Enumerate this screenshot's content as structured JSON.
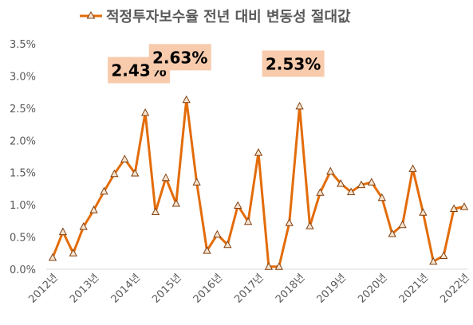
{
  "chart_data": {
    "type": "line",
    "title": "",
    "xlabel": "",
    "ylabel": "",
    "ylim": [
      0,
      0.035
    ],
    "y_ticks": [
      "0.0%",
      "0.5%",
      "1.0%",
      "1.5%",
      "2.0%",
      "2.5%",
      "3.0%",
      "3.5%"
    ],
    "x_tick_labels": [
      "2012년",
      "2013년",
      "2014년",
      "2015년",
      "2016년",
      "2017년",
      "2018년",
      "2019년",
      "2020년",
      "2021년",
      "2022년"
    ],
    "grid": false,
    "legend_position": "top",
    "series": [
      {
        "name": "적정투자보수율 전년 대비 변동성 절대값",
        "color": "#E36C09",
        "marker_fill": "#F8E5D0",
        "values": [
          0.0018,
          0.0058,
          0.0025,
          0.0066,
          0.0092,
          0.0121,
          0.0148,
          0.0171,
          0.0149,
          0.0243,
          0.0089,
          0.0142,
          0.0102,
          0.0263,
          0.0135,
          0.0029,
          0.0054,
          0.0038,
          0.0099,
          0.0074,
          0.0181,
          0.0004,
          0.0004,
          0.0072,
          0.0253,
          0.0067,
          0.0119,
          0.0152,
          0.0133,
          0.012,
          0.0131,
          0.0135,
          0.0111,
          0.0055,
          0.0069,
          0.0156,
          0.0088,
          0.0012,
          0.0021,
          0.0094,
          0.0097
        ]
      }
    ],
    "annotations": [
      {
        "text": "2.43%",
        "point_index": 9
      },
      {
        "text": "2.63%",
        "point_index": 13
      },
      {
        "text": "2.53%",
        "point_index": 24
      }
    ]
  }
}
